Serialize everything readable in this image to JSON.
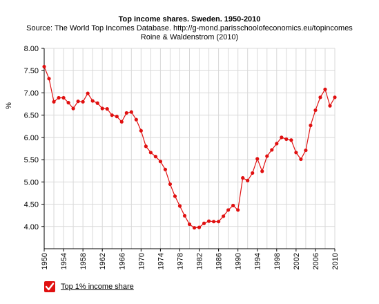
{
  "chart_data": {
    "type": "line",
    "title": "Top income shares. Sweden. 1950-2010",
    "subtitle_lines": [
      "Source: The World Top Incomes Database. http://g-mond.parisschoolofeconomics.eu/topincomes",
      "Roine & Waldenstrom (2010)"
    ],
    "ylabel": "%",
    "xlabel": "",
    "xlim": [
      1950,
      2010
    ],
    "ylim": [
      3.5,
      8.0
    ],
    "y_ticks": [
      "8.00",
      "7.50",
      "7.00",
      "6.50",
      "6.00",
      "5.50",
      "5.00",
      "4.50",
      "4.00"
    ],
    "x_ticks": [
      "1950",
      "1954",
      "1958",
      "1962",
      "1966",
      "1970",
      "1974",
      "1978",
      "1982",
      "1986",
      "1990",
      "1994",
      "1998",
      "2002",
      "2006",
      "2010"
    ],
    "grid": true,
    "legend_position": "bottom-left",
    "series": [
      {
        "name": "Top 1% income share",
        "color": "#e01010",
        "x": [
          1950,
          1951,
          1952,
          1953,
          1954,
          1955,
          1956,
          1957,
          1958,
          1959,
          1960,
          1961,
          1962,
          1963,
          1964,
          1965,
          1966,
          1967,
          1968,
          1969,
          1970,
          1971,
          1972,
          1973,
          1974,
          1975,
          1976,
          1977,
          1978,
          1979,
          1980,
          1981,
          1982,
          1983,
          1984,
          1985,
          1986,
          1987,
          1988,
          1989,
          1990,
          1991,
          1992,
          1993,
          1994,
          1995,
          1996,
          1997,
          1998,
          1999,
          2000,
          2001,
          2002,
          2003,
          2004,
          2005,
          2006,
          2007,
          2008,
          2009,
          2010
        ],
        "values": [
          7.59,
          7.32,
          6.8,
          6.89,
          6.89,
          6.78,
          6.65,
          6.81,
          6.8,
          6.99,
          6.82,
          6.77,
          6.65,
          6.64,
          6.5,
          6.47,
          6.35,
          6.55,
          6.57,
          6.4,
          6.15,
          5.8,
          5.66,
          5.57,
          5.46,
          5.28,
          4.95,
          4.68,
          4.46,
          4.24,
          4.05,
          3.97,
          3.98,
          4.07,
          4.12,
          4.11,
          4.11,
          4.23,
          4.37,
          4.47,
          4.37,
          5.09,
          5.03,
          5.2,
          5.52,
          5.24,
          5.58,
          5.72,
          5.86,
          6.0,
          5.96,
          5.94,
          5.66,
          5.51,
          5.71,
          6.27,
          6.61,
          6.9,
          7.08,
          6.71,
          6.9
        ]
      }
    ]
  }
}
